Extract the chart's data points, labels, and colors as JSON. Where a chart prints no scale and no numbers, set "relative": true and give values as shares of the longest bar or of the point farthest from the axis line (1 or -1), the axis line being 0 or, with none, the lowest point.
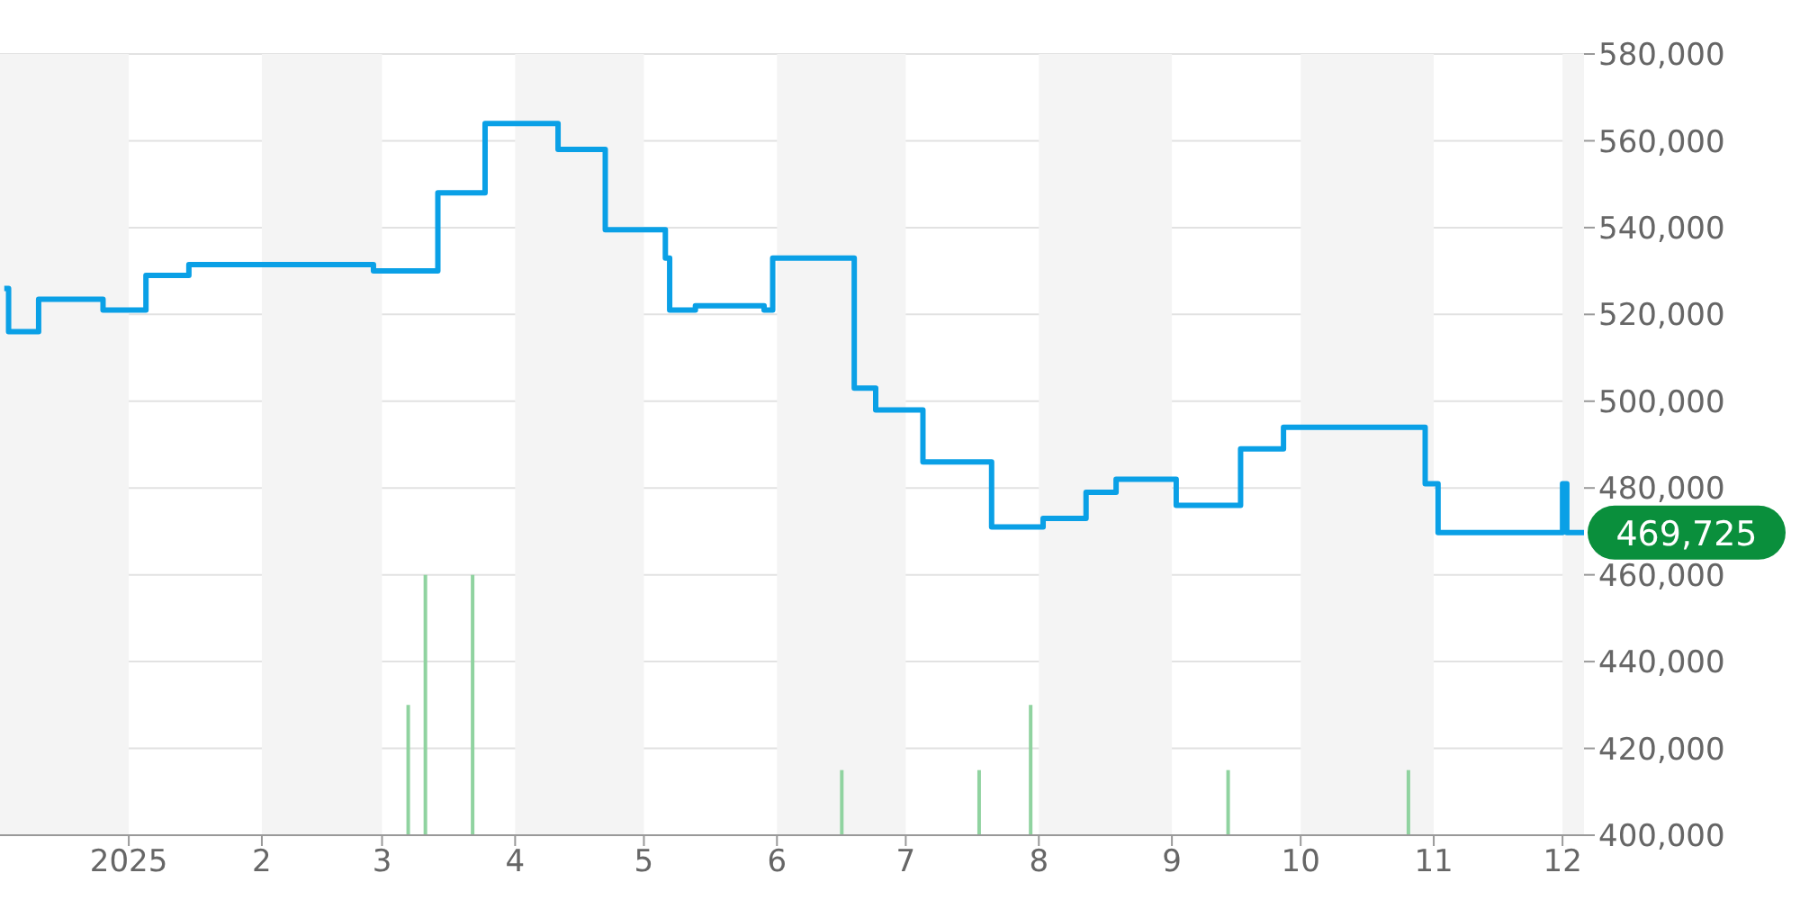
{
  "chart_data": [
    {
      "type": "step",
      "annotations": [
        {
          "text": "469,725",
          "x": "2025-12-06",
          "y": 469725
        }
      ],
      "series": [
        {
          "color": "#0aa0e6",
          "x": [
            "2024-12-03",
            "2024-12-04",
            "2024-12-11",
            "2024-12-26",
            "2025-01-05",
            "2025-01-15",
            "2025-02-27",
            "2025-03-14",
            "2025-03-25",
            "2025-04-11",
            "2025-04-22",
            "2025-05-06",
            "2025-05-07",
            "2025-05-13",
            "2025-05-29",
            "2025-05-31",
            "2025-06-19",
            "2025-06-24",
            "2025-07-05",
            "2025-07-21",
            "2025-08-02",
            "2025-08-12",
            "2025-08-19",
            "2025-09-02",
            "2025-09-17",
            "2025-09-27",
            "2025-10-30",
            "2025-11-02",
            "2025-12-01",
            "2025-12-02",
            "2025-12-06"
          ],
          "values": [
            526000,
            516000,
            523500,
            521000,
            529000,
            531500,
            530000,
            548000,
            564000,
            558000,
            539500,
            533000,
            521000,
            522000,
            521000,
            533000,
            503000,
            498000,
            486000,
            471000,
            473000,
            479000,
            482000,
            476000,
            489000,
            494000,
            481000,
            469725,
            481000,
            469725,
            469725
          ]
        }
      ],
      "xlim": [
        "2024-12-02",
        "2025-12-06"
      ],
      "xticks": [
        {
          "value": "2025-01-01",
          "label": "2025"
        },
        {
          "value": "2025-02-01",
          "label": "2"
        },
        {
          "value": "2025-03-01",
          "label": "3"
        },
        {
          "value": "2025-04-01",
          "label": "4"
        },
        {
          "value": "2025-05-01",
          "label": "5"
        },
        {
          "value": "2025-06-01",
          "label": "6"
        },
        {
          "value": "2025-07-01",
          "label": "7"
        },
        {
          "value": "2025-08-01",
          "label": "8"
        },
        {
          "value": "2025-09-01",
          "label": "9"
        },
        {
          "value": "2025-10-01",
          "label": "10"
        },
        {
          "value": "2025-11-01",
          "label": "11"
        },
        {
          "value": "2025-12-01",
          "label": "12"
        }
      ],
      "ylim": [
        400000,
        580000
      ],
      "yticks": [
        {
          "value": 400000,
          "label": "400,000"
        },
        {
          "value": 420000,
          "label": "420,000"
        },
        {
          "value": 440000,
          "label": "440,000"
        },
        {
          "value": 460000,
          "label": "460,000"
        },
        {
          "value": 480000,
          "label": "480,000"
        },
        {
          "value": 500000,
          "label": "500,000"
        },
        {
          "value": 520000,
          "label": "520,000"
        },
        {
          "value": 540000,
          "label": "540,000"
        },
        {
          "value": 560000,
          "label": "560,000"
        },
        {
          "value": 580000,
          "label": "580,000"
        }
      ],
      "grid": "y",
      "bands": [
        {
          "axis": "x",
          "from": "2024-12-02",
          "to": "2025-01-01",
          "color": "#f4f4f4"
        },
        {
          "axis": "x",
          "from": "2025-02-01",
          "to": "2025-03-01",
          "color": "#f4f4f4"
        },
        {
          "axis": "x",
          "from": "2025-04-01",
          "to": "2025-05-01",
          "color": "#f4f4f4"
        },
        {
          "axis": "x",
          "from": "2025-06-01",
          "to": "2025-07-01",
          "color": "#f4f4f4"
        },
        {
          "axis": "x",
          "from": "2025-08-01",
          "to": "2025-09-01",
          "color": "#f4f4f4"
        },
        {
          "axis": "x",
          "from": "2025-10-01",
          "to": "2025-11-01",
          "color": "#f4f4f4"
        },
        {
          "axis": "x",
          "from": "2025-12-01",
          "to": "2025-12-06",
          "color": "#f4f4f4"
        }
      ]
    },
    {
      "type": "bar",
      "relative": true,
      "color": "#90d3a0",
      "x": [
        "2025-03-07",
        "2025-03-11",
        "2025-03-22",
        "2025-06-16",
        "2025-07-18",
        "2025-07-30",
        "2025-09-14",
        "2025-10-26"
      ],
      "values": [
        0.5,
        1,
        1,
        0.25,
        0.25,
        0.5,
        0.25,
        0.25
      ],
      "xlim": [
        "2024-12-02",
        "2025-12-06"
      ]
    }
  ]
}
